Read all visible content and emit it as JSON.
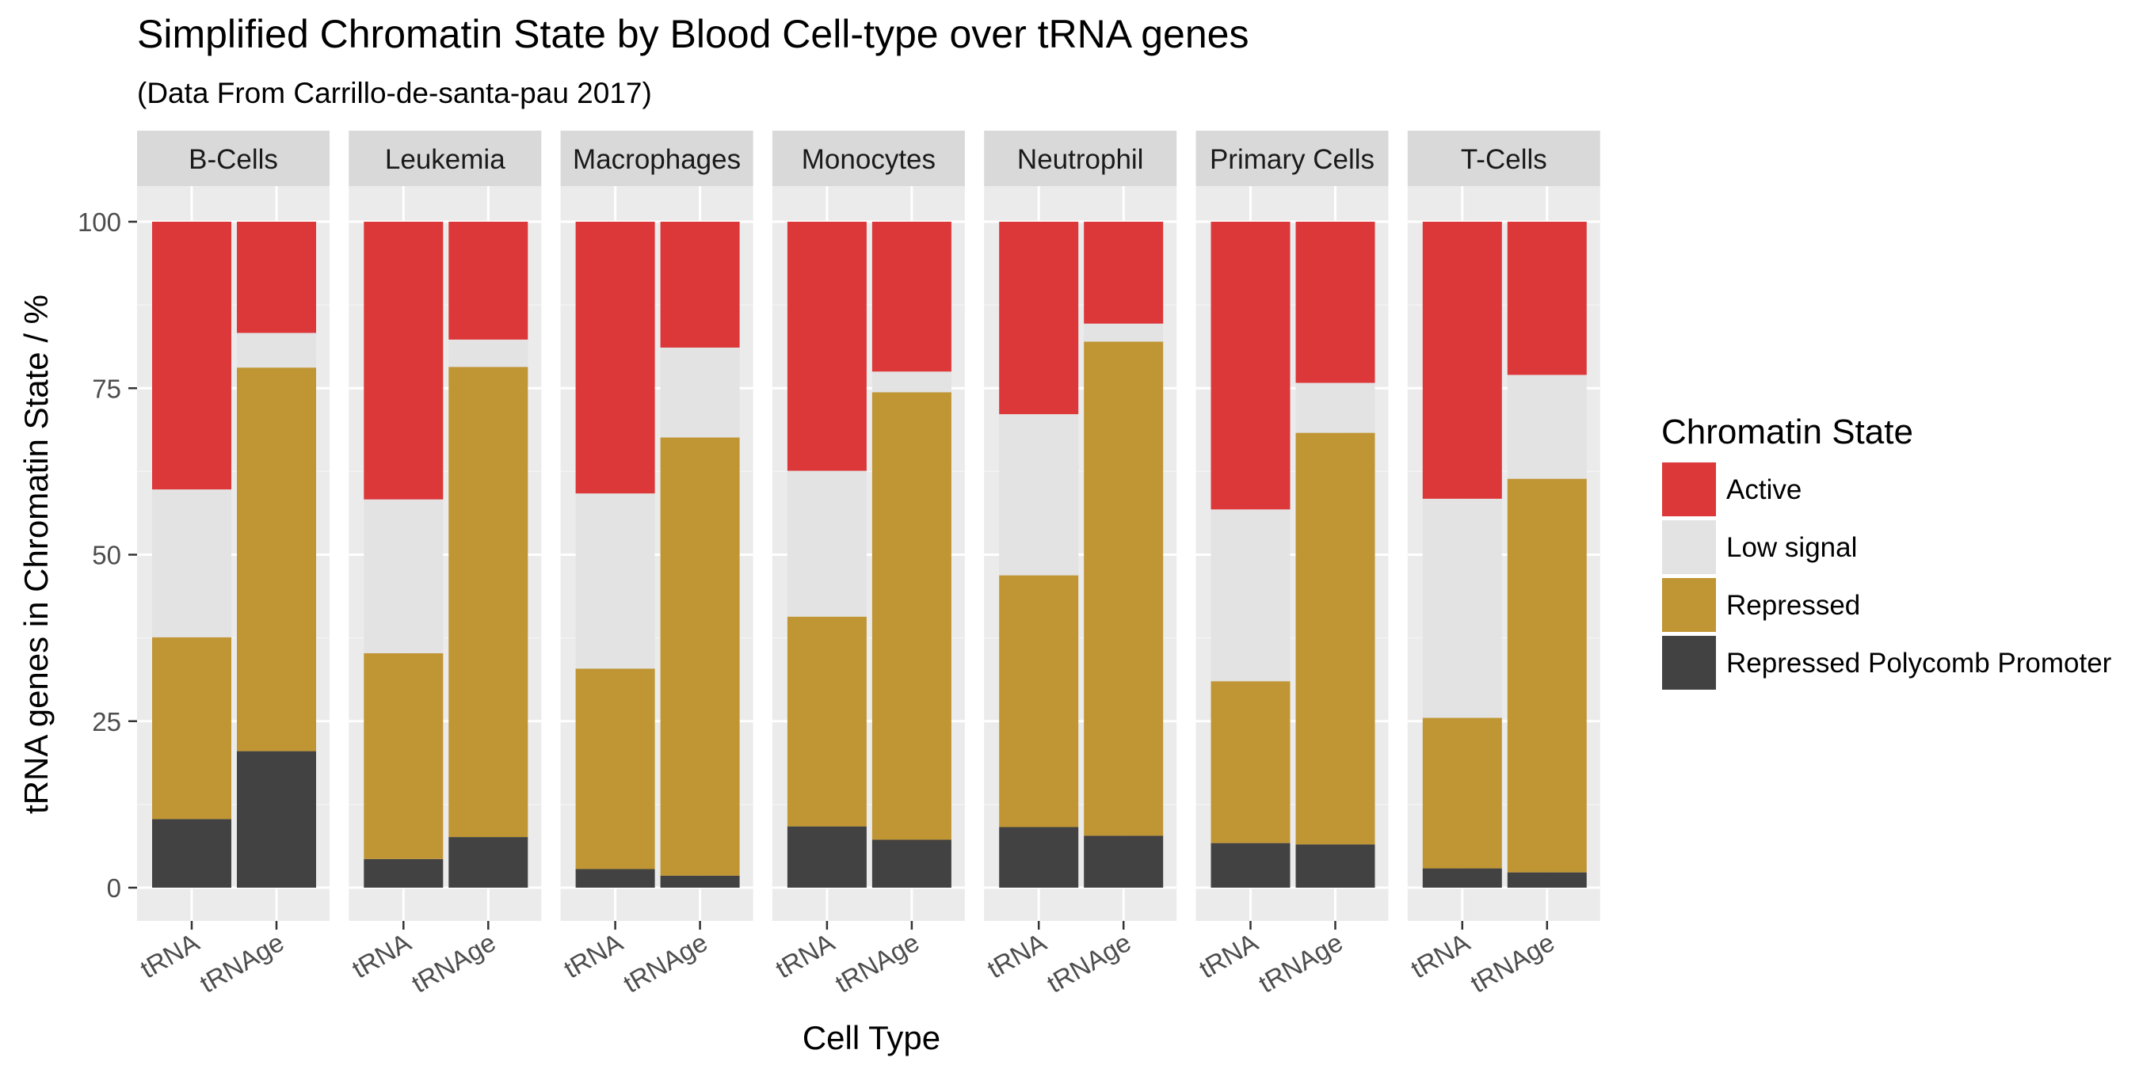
{
  "chart_data": {
    "type": "bar",
    "stacked": true,
    "title": "Simplified Chromatin State by Blood Cell-type over tRNA genes",
    "subtitle": "(Data From Carrillo-de-santa-pau 2017)",
    "xlabel": "Cell Type",
    "ylabel": "tRNA genes in Chromatin State / %",
    "ylim": [
      0,
      100
    ],
    "yticks": [
      0,
      25,
      50,
      75,
      100
    ],
    "grid": true,
    "legend_position": "right",
    "legend_title": "Chromatin State",
    "facets": [
      "B-Cells",
      "Leukemia",
      "Macrophages",
      "Monocytes",
      "Neutrophil",
      "Primary Cells",
      "T-Cells"
    ],
    "categories": [
      "tRNA",
      "tRNAge"
    ],
    "states": [
      {
        "name": "Active",
        "color": "#DC3739"
      },
      {
        "name": "Low signal",
        "color": "#E3E3E3"
      },
      {
        "name": "Repressed",
        "color": "#C09533"
      },
      {
        "name": "Repressed Polycomb Promoter",
        "color": "#424242"
      }
    ],
    "values": [
      {
        "facet": "B-Cells",
        "bars": [
          {
            "category": "tRNA",
            "Active": 40.2,
            "Low signal": 22.2,
            "Repressed": 27.3,
            "Repressed Polycomb Promoter": 10.3
          },
          {
            "category": "tRNAge",
            "Active": 16.7,
            "Low signal": 5.2,
            "Repressed": 57.6,
            "Repressed Polycomb Promoter": 20.5
          }
        ]
      },
      {
        "facet": "Leukemia",
        "bars": [
          {
            "category": "tRNA",
            "Active": 41.7,
            "Low signal": 23.1,
            "Repressed": 30.9,
            "Repressed Polycomb Promoter": 4.3
          },
          {
            "category": "tRNAge",
            "Active": 17.7,
            "Low signal": 4.1,
            "Repressed": 70.6,
            "Repressed Polycomb Promoter": 7.6
          }
        ]
      },
      {
        "facet": "Macrophages",
        "bars": [
          {
            "category": "tRNA",
            "Active": 40.8,
            "Low signal": 26.3,
            "Repressed": 30.1,
            "Repressed Polycomb Promoter": 2.8
          },
          {
            "category": "tRNAge",
            "Active": 18.9,
            "Low signal": 13.5,
            "Repressed": 65.8,
            "Repressed Polycomb Promoter": 1.8
          }
        ]
      },
      {
        "facet": "Monocytes",
        "bars": [
          {
            "category": "tRNA",
            "Active": 37.4,
            "Low signal": 21.9,
            "Repressed": 31.5,
            "Repressed Polycomb Promoter": 9.2
          },
          {
            "category": "tRNAge",
            "Active": 22.5,
            "Low signal": 3.1,
            "Repressed": 67.2,
            "Repressed Polycomb Promoter": 7.2
          }
        ]
      },
      {
        "facet": "Neutrophil",
        "bars": [
          {
            "category": "tRNA",
            "Active": 28.9,
            "Low signal": 24.2,
            "Repressed": 37.8,
            "Repressed Polycomb Promoter": 9.1
          },
          {
            "category": "tRNAge",
            "Active": 15.3,
            "Low signal": 2.7,
            "Repressed": 74.2,
            "Repressed Polycomb Promoter": 7.8
          }
        ]
      },
      {
        "facet": "Primary Cells",
        "bars": [
          {
            "category": "tRNA",
            "Active": 43.2,
            "Low signal": 25.8,
            "Repressed": 24.3,
            "Repressed Polycomb Promoter": 6.7
          },
          {
            "category": "tRNAge",
            "Active": 24.2,
            "Low signal": 7.5,
            "Repressed": 61.8,
            "Repressed Polycomb Promoter": 6.5
          }
        ]
      },
      {
        "facet": "T-Cells",
        "bars": [
          {
            "category": "tRNA",
            "Active": 41.6,
            "Low signal": 32.9,
            "Repressed": 22.6,
            "Repressed Polycomb Promoter": 2.9
          },
          {
            "category": "tRNAge",
            "Active": 23.0,
            "Low signal": 15.6,
            "Repressed": 59.1,
            "Repressed Polycomb Promoter": 2.3
          }
        ]
      }
    ]
  }
}
